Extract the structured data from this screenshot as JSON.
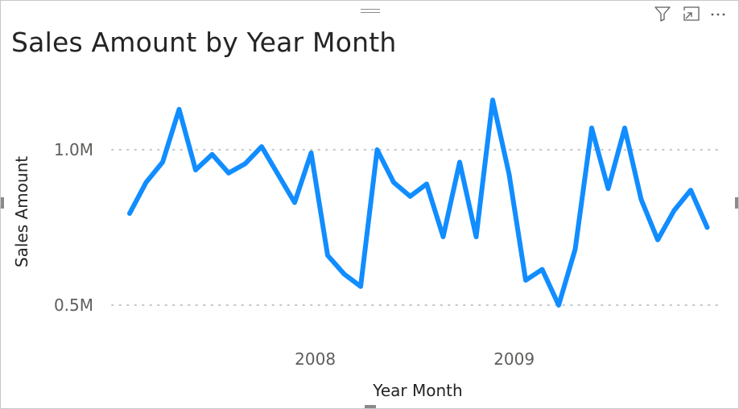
{
  "visual": {
    "title": "Sales Amount by Year Month",
    "header_icons": [
      "filter-icon",
      "focus-mode-icon",
      "more-options-icon"
    ]
  },
  "colors": {
    "line": "#118DFF",
    "grid": "#C8C6C4",
    "text": "#252423",
    "tick": "#605E5C"
  },
  "chart_data": {
    "type": "line",
    "title": "Sales Amount by Year Month",
    "xlabel": "Year Month",
    "ylabel": "Sales Amount",
    "y_ticks": [
      {
        "value": 500000,
        "label": "0.5M"
      },
      {
        "value": 1000000,
        "label": "1.0M"
      }
    ],
    "x_ticks": [
      {
        "index": 11.25,
        "label": "2008"
      },
      {
        "index": 23.3,
        "label": "2009"
      }
    ],
    "grid": "horizontal dotted",
    "legend": "none",
    "series": [
      {
        "values": [
          795000,
          895000,
          960000,
          1130000,
          935000,
          985000,
          925000,
          955000,
          1010000,
          920000,
          830000,
          990000,
          660000,
          600000,
          560000,
          1000000,
          895000,
          850000,
          890000,
          720000,
          960000,
          720000,
          1160000,
          920000,
          580000,
          615000,
          500000,
          680000,
          1070000,
          875000,
          1070000,
          840000,
          710000,
          805000,
          870000,
          750000
        ]
      }
    ]
  }
}
